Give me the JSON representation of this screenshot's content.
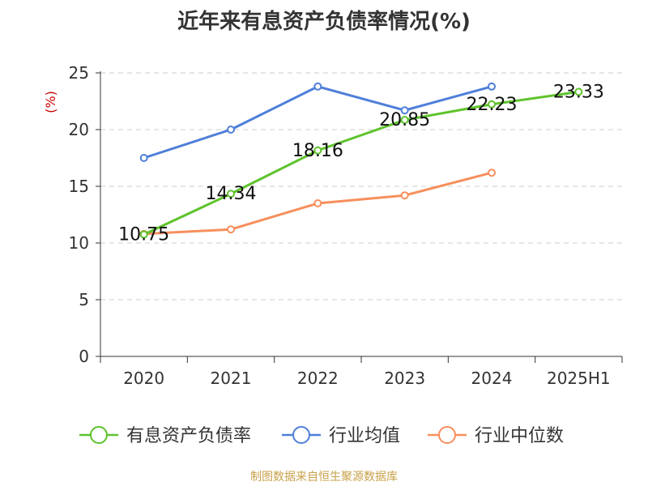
{
  "chart_data": {
    "type": "line",
    "title": "近年来有息资产负债率情况(%)",
    "ylabel": "(%)",
    "categories": [
      "2020",
      "2021",
      "2022",
      "2023",
      "2024",
      "2025H1"
    ],
    "ylim": [
      0,
      25
    ],
    "yticks": [
      0,
      5,
      10,
      15,
      20,
      25
    ],
    "grid": true,
    "legend_position": "bottom",
    "series": [
      {
        "name": "有息资产负债率",
        "color": "#5fc32c",
        "values": [
          10.75,
          14.34,
          18.16,
          20.85,
          22.23,
          23.33
        ],
        "labels": [
          "10.75",
          "14.34",
          "18.16",
          "20.85",
          "22.23",
          "23.33"
        ]
      },
      {
        "name": "行业均值",
        "color": "#4f7fd9",
        "values": [
          17.5,
          20.0,
          23.8,
          21.7,
          23.8,
          null
        ],
        "labels": null
      },
      {
        "name": "行业中位数",
        "color": "#f78f5c",
        "values": [
          10.8,
          11.2,
          13.5,
          14.2,
          16.2,
          null
        ],
        "labels": null
      }
    ]
  },
  "footer": {
    "source": "制图数据来自恒生聚源数据库",
    "color": "#c8a04a"
  },
  "colors": {
    "axis": "#333333",
    "grid": "#cccccc",
    "ylabel": "#cc0000"
  }
}
